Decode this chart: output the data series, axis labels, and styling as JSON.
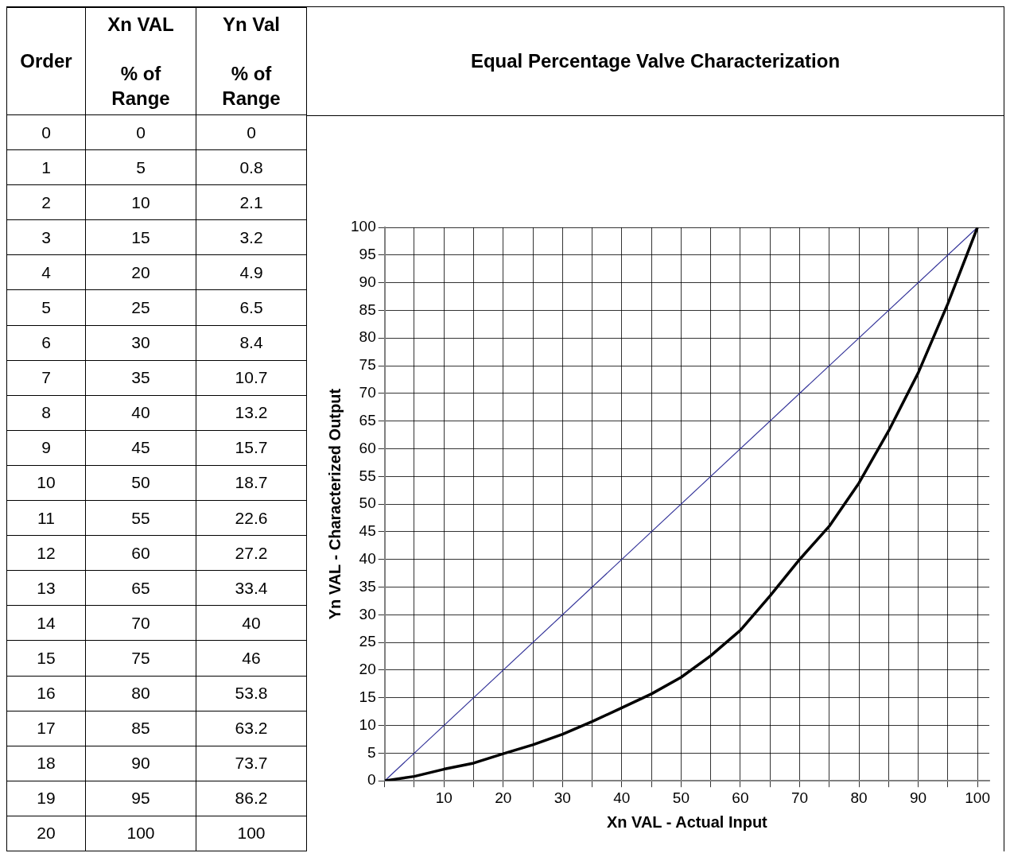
{
  "chart_data": [
    {
      "type": "other",
      "annotations": [
        "Order",
        "Xn VAL",
        "% of Range",
        "Yn Val",
        "% of Range",
        "0",
        "0",
        "0",
        "1",
        "5",
        "0.8",
        "2",
        "10",
        "2.1",
        "3",
        "15",
        "3.2",
        "4",
        "20",
        "4.9",
        "5",
        "25",
        "6.5",
        "6",
        "30",
        "8.4",
        "7",
        "35",
        "10.7",
        "8",
        "40",
        "13.2",
        "9",
        "45",
        "15.7",
        "10",
        "50",
        "18.7",
        "11",
        "55",
        "22.6",
        "12",
        "60",
        "27.2",
        "13",
        "65",
        "33.4",
        "14",
        "70",
        "40",
        "15",
        "75",
        "46",
        "16",
        "80",
        "53.8",
        "17",
        "85",
        "63.2",
        "18",
        "90",
        "73.7",
        "19",
        "95",
        "86.2",
        "20",
        "100",
        "100"
      ]
    },
    {
      "type": "line",
      "title": "Equal Percentage Valve Characterization",
      "xlabel": "Xn VAL - Actual Input",
      "ylabel": "Yn VAL - Characterized Output",
      "x": [
        0,
        5,
        10,
        15,
        20,
        25,
        30,
        35,
        40,
        45,
        50,
        55,
        60,
        65,
        70,
        75,
        80,
        85,
        90,
        95,
        100
      ],
      "series": [
        {
          "color": "#000000",
          "values": [
            0,
            0.8,
            2.1,
            3.2,
            4.9,
            6.5,
            8.4,
            10.7,
            13.2,
            15.7,
            18.7,
            22.6,
            27.2,
            33.4,
            40,
            46,
            53.8,
            63.2,
            73.7,
            86.2,
            100
          ]
        },
        {
          "type": "line",
          "color": "#333399",
          "x": [
            0,
            100
          ],
          "values": [
            0,
            100
          ]
        }
      ],
      "marker": "none",
      "grid": true,
      "xlim": [
        0,
        102
      ],
      "xticks": [
        {
          "value": 0,
          "label": null
        },
        {
          "value": 5,
          "label": null
        },
        10,
        {
          "value": 15,
          "label": null
        },
        20,
        {
          "value": 25,
          "label": null
        },
        30,
        {
          "value": 35,
          "label": null
        },
        40,
        {
          "value": 45,
          "label": null
        },
        50,
        {
          "value": 55,
          "label": null
        },
        60,
        {
          "value": 65,
          "label": null
        },
        70,
        {
          "value": 75,
          "label": null
        },
        80,
        {
          "value": 85,
          "label": null
        },
        90,
        {
          "value": 95,
          "label": null
        },
        100
      ],
      "ylim": [
        0,
        100
      ],
      "yticks": [
        0,
        5,
        10,
        15,
        20,
        25,
        30,
        35,
        40,
        45,
        50,
        55,
        60,
        65,
        70,
        75,
        80,
        85,
        90,
        95,
        100
      ]
    }
  ]
}
